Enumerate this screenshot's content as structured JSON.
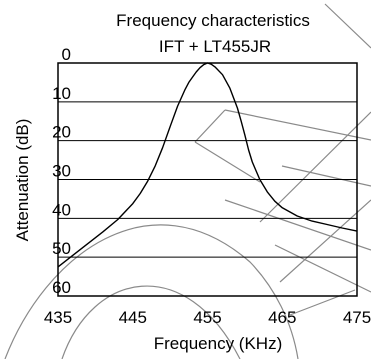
{
  "chart_data": {
    "type": "line",
    "title": "Frequency characteristics",
    "subtitle": "IFT + LT455JR",
    "xlabel": "Frequency (KHz)",
    "ylabel": "Attenuation (dB)",
    "xlim": [
      435,
      475
    ],
    "ylim": [
      60,
      0
    ],
    "x_ticks": [
      "435",
      "445",
      "455",
      "465",
      "475"
    ],
    "y_ticks": [
      "0",
      "10",
      "20",
      "30",
      "40",
      "50",
      "60"
    ],
    "grid": {
      "horizontal": true,
      "vertical": false
    },
    "series": [
      {
        "x": [
          435,
          437,
          439,
          441,
          443,
          445,
          446,
          447,
          448,
          449,
          450,
          451,
          452,
          452.5,
          453,
          453.5,
          454,
          454.5,
          455,
          455.5,
          456,
          457,
          458,
          459,
          459.5,
          460,
          460.5,
          461,
          462,
          463,
          464,
          465,
          467,
          469,
          471,
          473,
          475
        ],
        "y": [
          52.5,
          49.5,
          46.5,
          43.5,
          40.3,
          36.2,
          33.6,
          30.4,
          26.5,
          21.8,
          16.4,
          11.1,
          6.8,
          5.0,
          3.6,
          2.3,
          1.2,
          0.4,
          0,
          0.3,
          1.0,
          3.0,
          6.5,
          11.6,
          14.9,
          18.6,
          22.4,
          25.5,
          30.0,
          33.2,
          35.6,
          37.3,
          39.4,
          40.7,
          41.6,
          42.5,
          43.3
        ]
      }
    ]
  }
}
